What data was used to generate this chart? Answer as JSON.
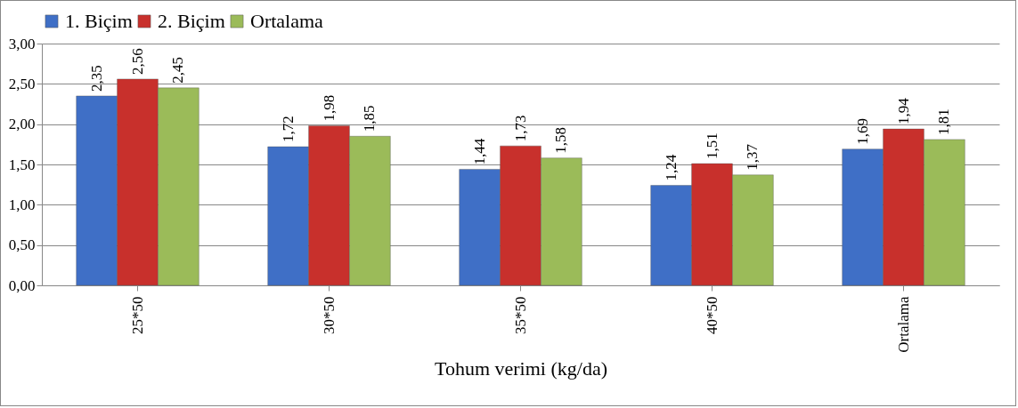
{
  "chart_data": {
    "type": "bar",
    "xlabel": "Tohum verimi (kg/da)",
    "categories": [
      "25*50",
      "30*50",
      "35*50",
      "40*50",
      "Ortalama"
    ],
    "series": [
      {
        "name": "1. Biçim",
        "color": "#3f6fc6",
        "values": [
          2.35,
          1.72,
          1.44,
          1.24,
          1.69
        ],
        "value_labels": [
          "2,35",
          "1,72",
          "1,44",
          "1,24",
          "1,69"
        ]
      },
      {
        "name": "2. Biçim",
        "color": "#c8302c",
        "values": [
          2.56,
          1.98,
          1.73,
          1.51,
          1.94
        ],
        "value_labels": [
          "2,56",
          "1,98",
          "1,73",
          "1,51",
          "1,94"
        ]
      },
      {
        "name": "Ortalama",
        "color": "#9bbb59",
        "values": [
          2.45,
          1.85,
          1.58,
          1.37,
          1.81
        ],
        "value_labels": [
          "2,45",
          "1,85",
          "1,58",
          "1,37",
          "1,81"
        ]
      }
    ],
    "ylim": [
      0,
      3
    ],
    "yticks": [
      {
        "value": 0,
        "label": "0,00"
      },
      {
        "value": 0.5,
        "label": "0,50"
      },
      {
        "value": 1,
        "label": "1,00"
      },
      {
        "value": 1.5,
        "label": "1,50"
      },
      {
        "value": 2,
        "label": "2,00"
      },
      {
        "value": 2.5,
        "label": "2,50"
      },
      {
        "value": 3,
        "label": "3,00"
      }
    ],
    "grid": "y",
    "legend": "top"
  }
}
